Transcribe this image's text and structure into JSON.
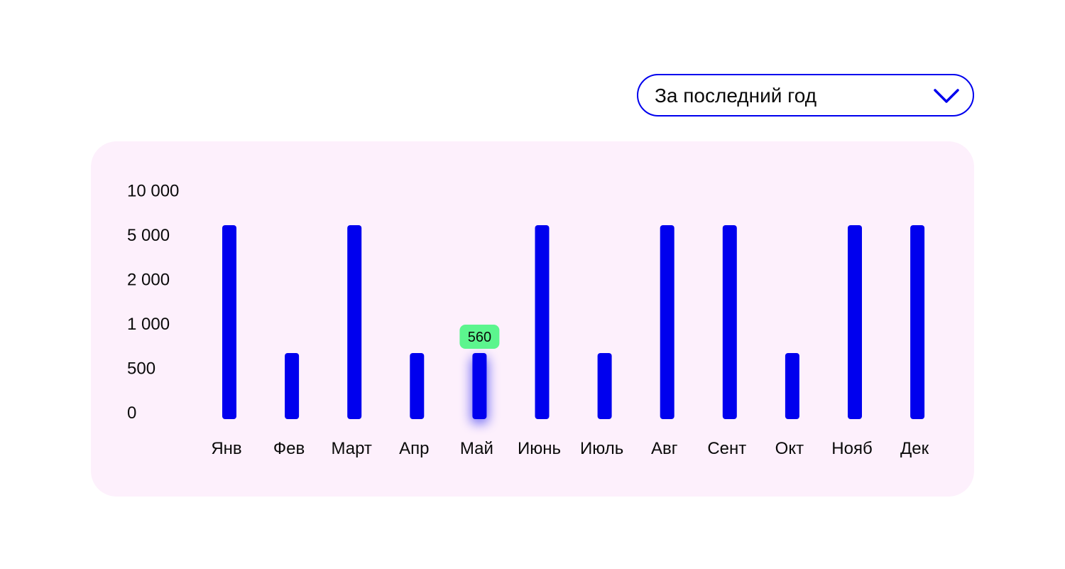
{
  "filter": {
    "selected": "За последний год",
    "icon": "chevron-down-icon"
  },
  "colors": {
    "accent": "#0000EE",
    "card_background": "#FDF0FC",
    "tooltip_background": "#5CF58E",
    "text": "#0a0a0a"
  },
  "chart_data": {
    "type": "bar",
    "categories": [
      "Янв",
      "Фев",
      "Март",
      "Апр",
      "Май",
      "Июнь",
      "Июль",
      "Авг",
      "Сент",
      "Окт",
      "Нояб",
      "Дек"
    ],
    "values": [
      5000,
      560,
      5000,
      560,
      560,
      5000,
      560,
      5000,
      5000,
      560,
      5000,
      5000
    ],
    "y_ticks": [
      0,
      500,
      1000,
      2000,
      5000,
      10000
    ],
    "y_tick_labels": [
      "0",
      "500",
      "1 000",
      "2 000",
      "5 000",
      "10 000"
    ],
    "ylim": [
      0,
      10000
    ],
    "y_scale": "ordinal-ticks",
    "grid": false,
    "legend": "none",
    "highlight": {
      "category": "Май",
      "label": "560"
    }
  }
}
